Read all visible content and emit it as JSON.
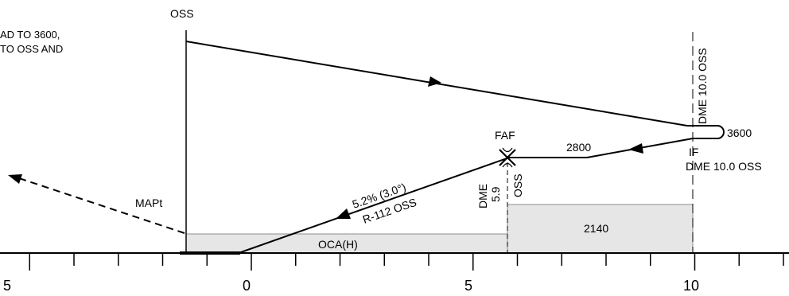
{
  "note_lines": [
    "AD TO 3600,",
    "TO OSS AND"
  ],
  "labels": {
    "oss_top": "OSS",
    "dme_vertical": "DME 10.0 OSS",
    "alt_3600": "3600",
    "alt_2800": "2800",
    "faf": "FAF",
    "if_label": "IF",
    "if_dme": "DME 10.0 OSS",
    "gradient": "5.2% (3.0°)",
    "radial": "R-112 OSS",
    "faf_dme": "DME",
    "faf_dme_value": "5.9",
    "faf_oss": "OSS",
    "mapt": "MAPt",
    "oca": "OCA(H)",
    "oca_2140": "2140"
  },
  "scale_labels": [
    "5",
    "0",
    "5",
    "10"
  ],
  "colors": {
    "line": "#000000",
    "shade": "#e6e6e6",
    "shade_border": "#8c8c8c"
  }
}
